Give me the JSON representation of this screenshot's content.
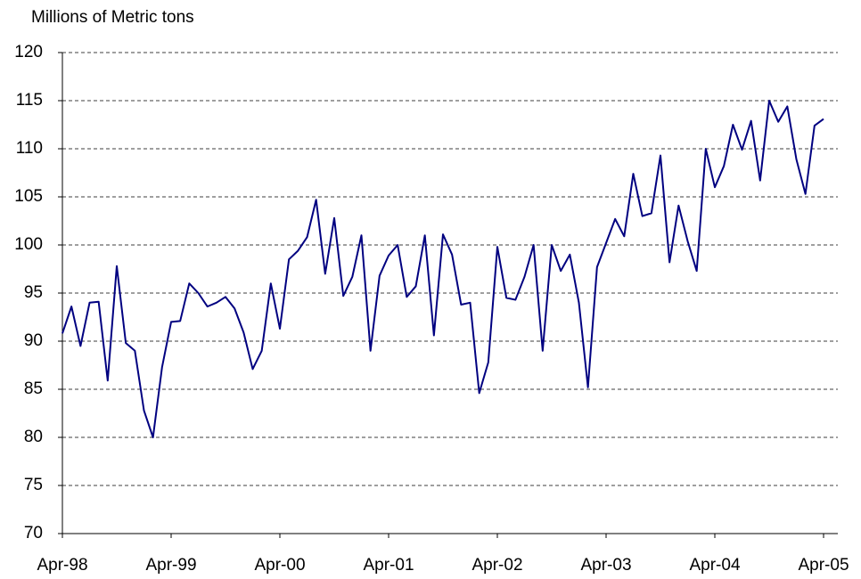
{
  "chart_data": {
    "type": "line",
    "y_label": "Millions of Metric tons",
    "categories": [
      "Apr-98",
      null,
      null,
      null,
      null,
      null,
      null,
      null,
      null,
      null,
      null,
      null,
      "Apr-99",
      null,
      null,
      null,
      null,
      null,
      null,
      null,
      null,
      null,
      null,
      null,
      "Apr-00",
      null,
      null,
      null,
      null,
      null,
      null,
      null,
      null,
      null,
      null,
      null,
      "Apr-01",
      null,
      null,
      null,
      null,
      null,
      null,
      null,
      null,
      null,
      null,
      null,
      "Apr-02",
      null,
      null,
      null,
      null,
      null,
      null,
      null,
      null,
      null,
      null,
      null,
      "Apr-03",
      null,
      null,
      null,
      null,
      null,
      null,
      null,
      null,
      null,
      null,
      null,
      "Apr-04",
      null,
      null,
      null,
      null,
      null,
      null,
      null,
      null,
      null,
      null,
      null,
      "Apr-05"
    ],
    "values": [
      90.8,
      93.6,
      89.5,
      94,
      94.1,
      85.9,
      97.8,
      89.8,
      89,
      82.8,
      80,
      87.3,
      92,
      92.1,
      96,
      95,
      93.6,
      94,
      94.6,
      93.4,
      90.9,
      87.1,
      89,
      96,
      91.3,
      98.5,
      99.4,
      100.8,
      104.7,
      97,
      102.8,
      94.7,
      96.7,
      101,
      89,
      96.8,
      98.9,
      100,
      94.6,
      95.7,
      101,
      90.6,
      101.1,
      99,
      93.8,
      94,
      84.6,
      87.8,
      99.8,
      94.5,
      94.3,
      96.7,
      100,
      89,
      100,
      97.3,
      99,
      94,
      85.2,
      97.7,
      100.2,
      102.7,
      100.9,
      107.4,
      103,
      103.3,
      109.3,
      98.2,
      104.1,
      100.4,
      97.3,
      110,
      106,
      108.2,
      112.5,
      109.9,
      112.9,
      106.7,
      115,
      112.8,
      114.4,
      108.9,
      105.3,
      112.4,
      113.1
    ],
    "color": "#000080",
    "ylim": [
      70,
      120
    ],
    "yticks": [
      70,
      75,
      80,
      85,
      90,
      95,
      100,
      105,
      110,
      115,
      120
    ],
    "grid": true
  }
}
